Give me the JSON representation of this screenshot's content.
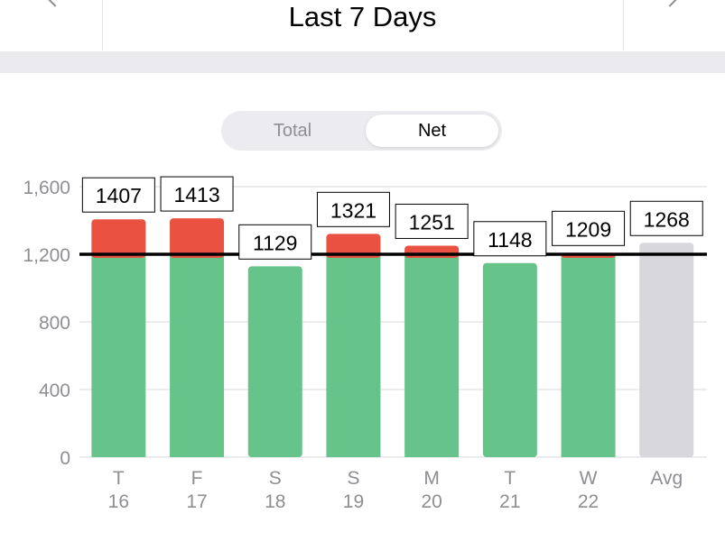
{
  "header": {
    "title": "Last 7 Days",
    "prev_icon": "chevron-left-icon",
    "next_icon": "chevron-right-icon"
  },
  "toggle": {
    "options": [
      "Total",
      "Net"
    ],
    "selected": "Net"
  },
  "colors": {
    "over": "#e95140",
    "under": "#66c48a",
    "avg": "#d8d8dc",
    "goal_line": "#000000",
    "grid": "#d9d9de",
    "tick_text": "#8e8e93"
  },
  "chart_data": {
    "type": "bar",
    "categories": [
      {
        "day": "T",
        "date": "16"
      },
      {
        "day": "F",
        "date": "17"
      },
      {
        "day": "S",
        "date": "18"
      },
      {
        "day": "S",
        "date": "19"
      },
      {
        "day": "M",
        "date": "20"
      },
      {
        "day": "T",
        "date": "21"
      },
      {
        "day": "W",
        "date": "22"
      },
      {
        "day": "Avg",
        "date": ""
      }
    ],
    "values": [
      1407,
      1413,
      1129,
      1321,
      1251,
      1148,
      1209,
      1268
    ],
    "goal": 1200,
    "ylim": [
      0,
      1600
    ],
    "yticks": [
      0,
      400,
      800,
      1200,
      1600
    ],
    "ytick_labels": [
      "0",
      "400",
      "800",
      "1,200",
      "1,600"
    ],
    "grid": true,
    "last_bar_is_average": true
  }
}
